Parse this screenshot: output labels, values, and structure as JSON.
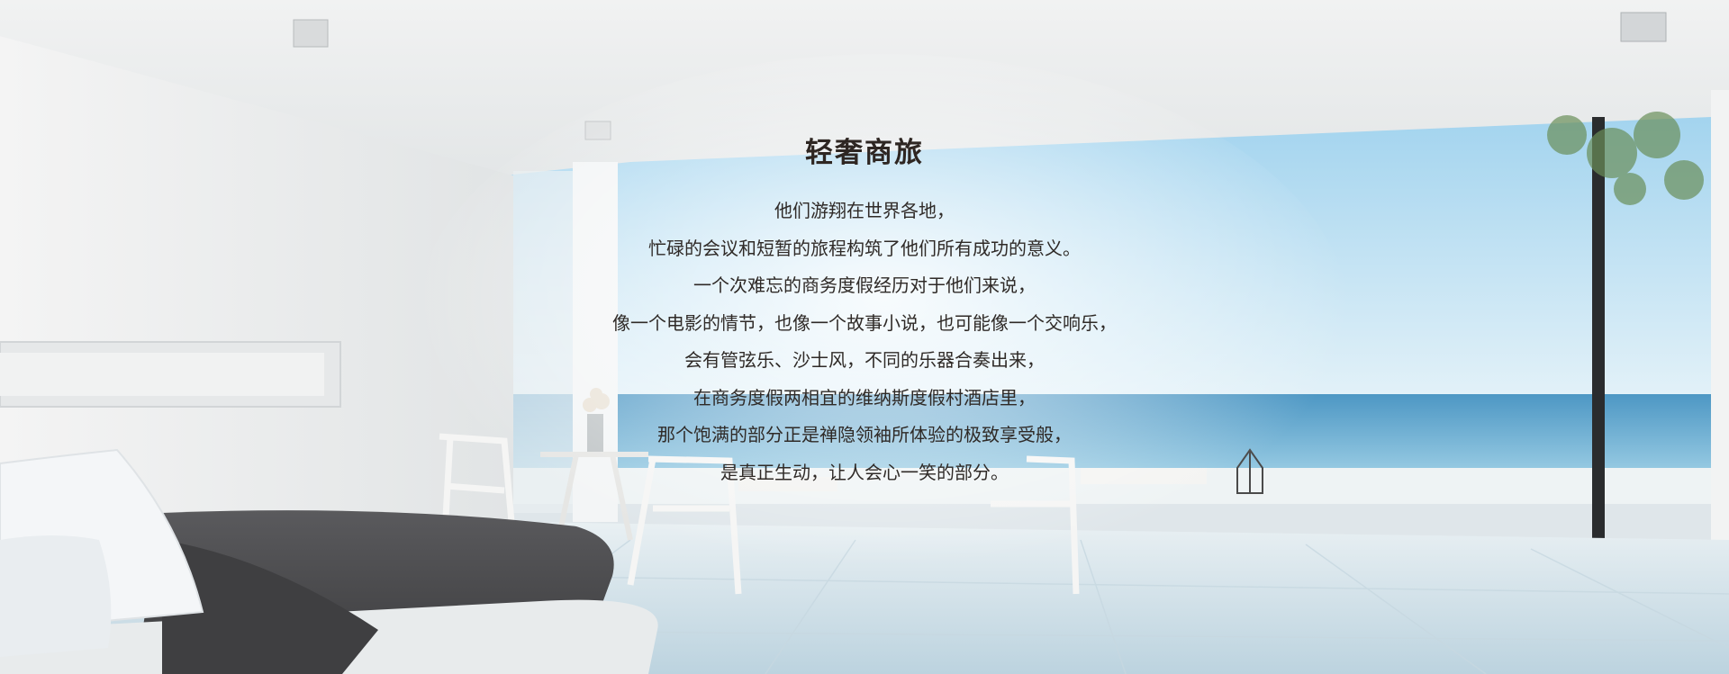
{
  "hero": {
    "title": "轻奢商旅",
    "lines": [
      "他们游翔在世界各地，",
      "忙碌的会议和短暂的旅程构筑了他们所有成功的意义。",
      "一个次难忘的商务度假经历对于他们来说，",
      "像一个电影的情节，也像一个故事小说，也可能像一个交响乐，",
      "会有管弦乐、沙士风，不同的乐器合奏出来，",
      "在商务度假两相宜的维纳斯度假村酒店里，",
      "那个饱满的部分正是禅隐领袖所体验的极致享受般，",
      "是真正生动，让人会心一笑的部分。"
    ]
  },
  "colors": {
    "text": "#2f2a27",
    "sea": "#5fa9cf",
    "sky": "#bfe1f2",
    "floor": "#dbe7ee",
    "bed_cover": "#4a4a4c"
  }
}
